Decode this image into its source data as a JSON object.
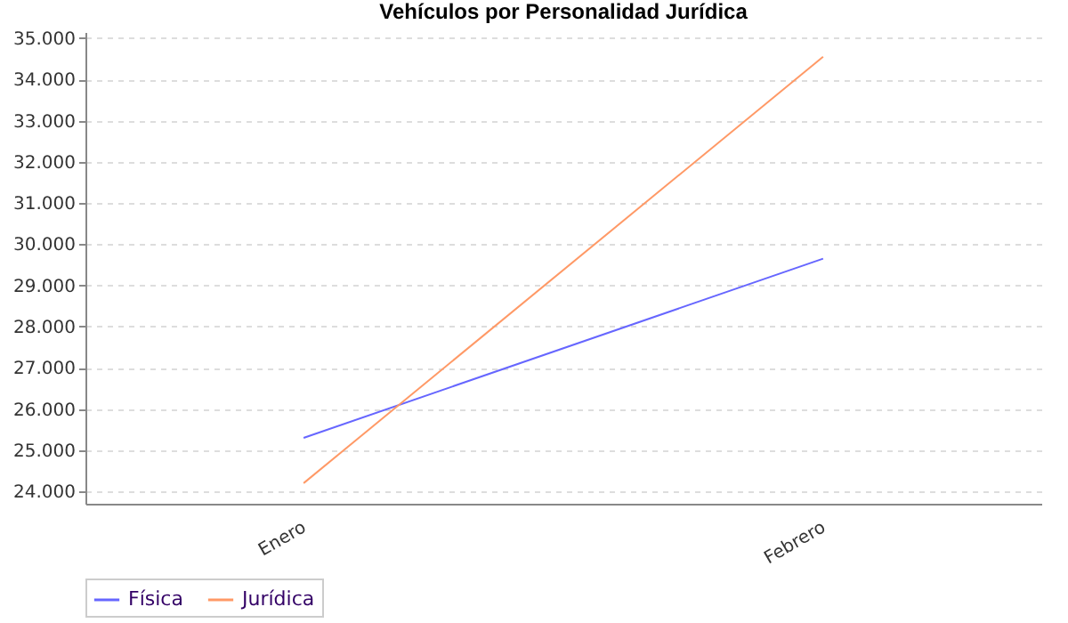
{
  "chart_data": {
    "type": "line",
    "title": "Vehículos por Personalidad Jurídica",
    "categories": [
      "Enero",
      "Febrero"
    ],
    "series": [
      {
        "name": "Física",
        "color": "#6666ff",
        "values": [
          25300,
          29650
        ]
      },
      {
        "name": "Jurídica",
        "color": "#ff9966",
        "values": [
          24200,
          34550
        ]
      }
    ],
    "ylim": [
      23700,
      35150
    ],
    "yticks": [
      {
        "value": 24000,
        "label": "24.000"
      },
      {
        "value": 25000,
        "label": "25.000"
      },
      {
        "value": 26000,
        "label": "26.000"
      },
      {
        "value": 27000,
        "label": "27.000"
      },
      {
        "value": 28000,
        "label": "28.000"
      },
      {
        "value": 29000,
        "label": "29.000"
      },
      {
        "value": 30000,
        "label": "30.000"
      },
      {
        "value": 31000,
        "label": "31.000"
      },
      {
        "value": 32000,
        "label": "32.000"
      },
      {
        "value": 33000,
        "label": "33.000"
      },
      {
        "value": 34000,
        "label": "34.000"
      },
      {
        "value": 35000,
        "label": "35.000"
      }
    ],
    "grid": "y",
    "legend": "bottom",
    "marker": "none",
    "line_style": "solid"
  }
}
